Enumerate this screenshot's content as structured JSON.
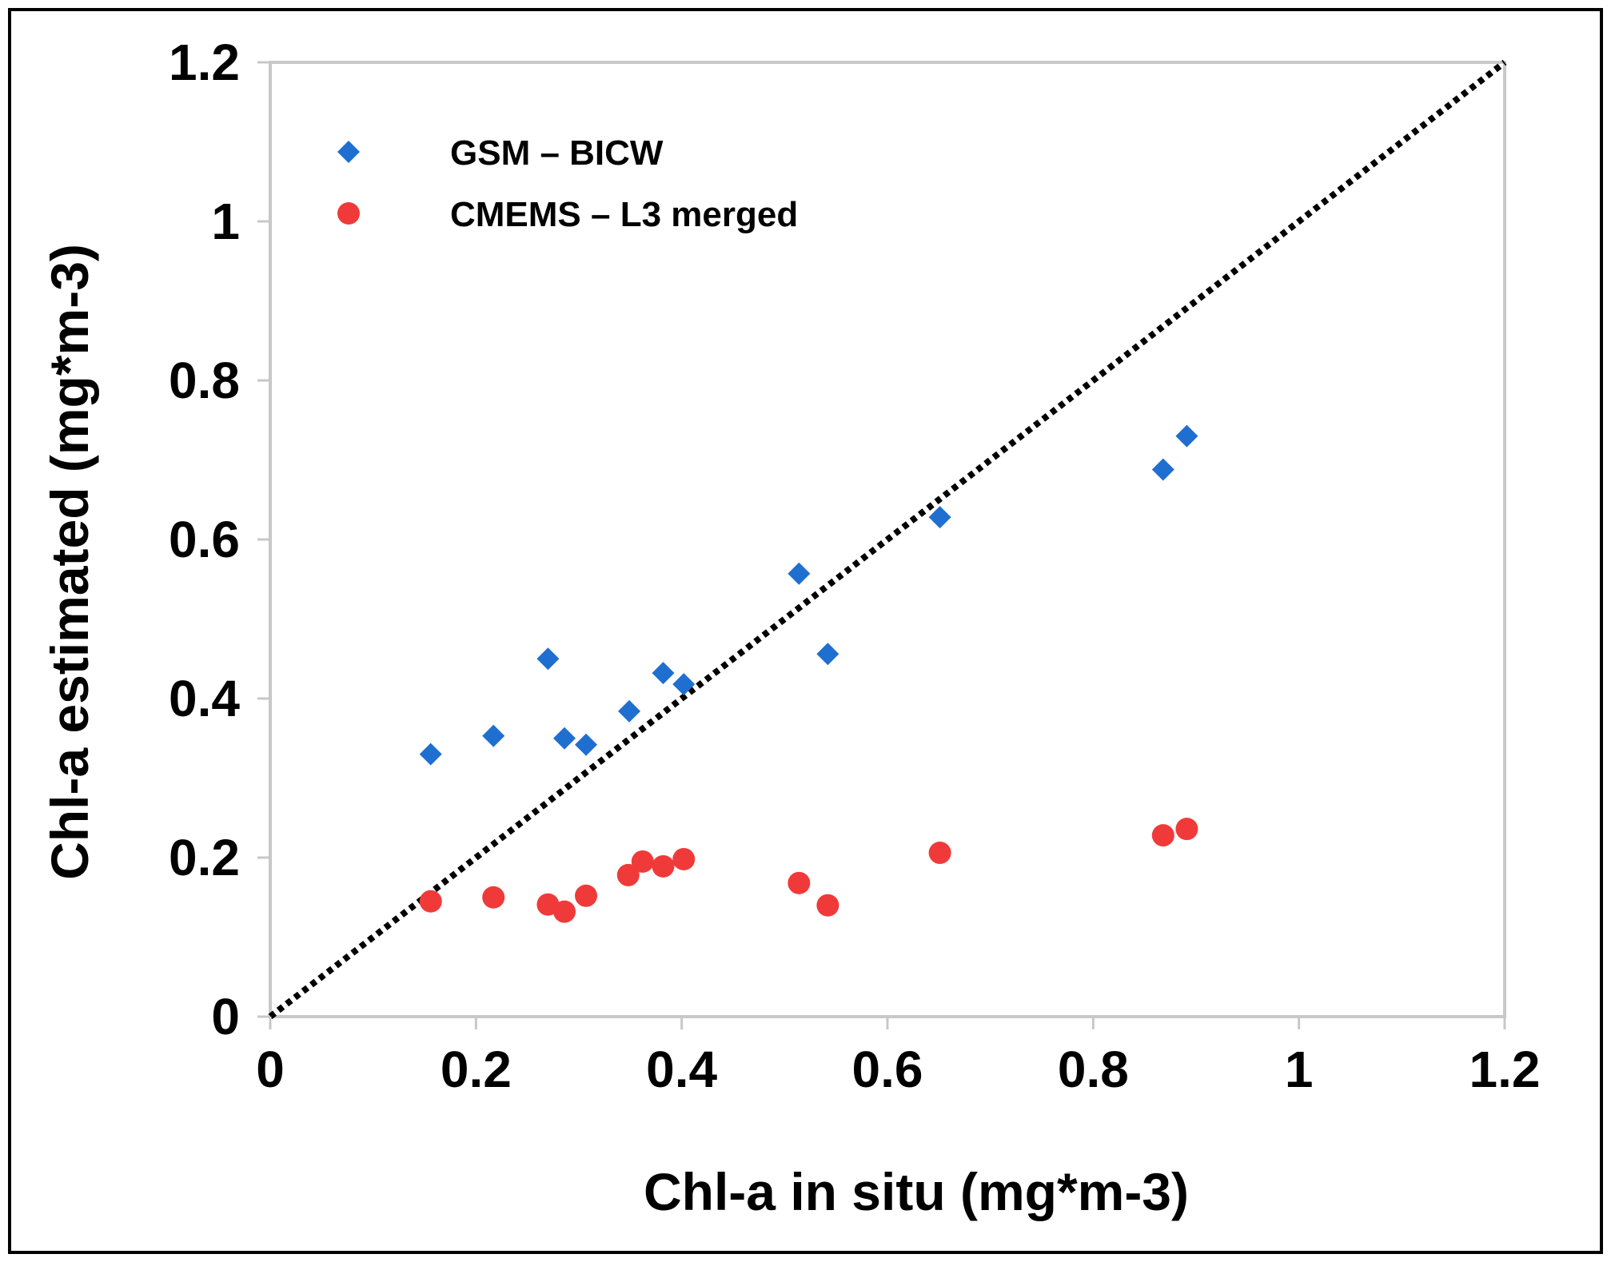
{
  "chart_data": {
    "type": "scatter",
    "xlabel": "Chl-a in situ (mg*m-3)",
    "ylabel": "Chl-a estimated (mg*m-3)",
    "xlim": [
      0,
      1.2
    ],
    "ylim": [
      0,
      1.2
    ],
    "xticks": [
      "0",
      "0.2",
      "0.4",
      "0.6",
      "0.8",
      "1",
      "1.2"
    ],
    "yticks": [
      "0",
      "0.2",
      "0.4",
      "0.6",
      "0.8",
      "1",
      "1.2"
    ],
    "xtick_values": [
      0,
      0.2,
      0.4,
      0.6,
      0.8,
      1.0,
      1.2
    ],
    "ytick_values": [
      0,
      0.2,
      0.4,
      0.6,
      0.8,
      1.0,
      1.2
    ],
    "grid": false,
    "legend_position": "top-left",
    "reference_line": {
      "style": "dotted",
      "from": [
        0,
        0
      ],
      "to": [
        1.2,
        1.2
      ],
      "color": "#000000"
    },
    "series": [
      {
        "name": "GSM – BICW",
        "marker": "diamond",
        "color": "#1f6fd1",
        "points": [
          {
            "x": 0.156,
            "y": 0.33
          },
          {
            "x": 0.217,
            "y": 0.353
          },
          {
            "x": 0.27,
            "y": 0.45
          },
          {
            "x": 0.286,
            "y": 0.35
          },
          {
            "x": 0.307,
            "y": 0.342
          },
          {
            "x": 0.349,
            "y": 0.384
          },
          {
            "x": 0.382,
            "y": 0.432
          },
          {
            "x": 0.402,
            "y": 0.418
          },
          {
            "x": 0.514,
            "y": 0.557
          },
          {
            "x": 0.542,
            "y": 0.456
          },
          {
            "x": 0.651,
            "y": 0.628
          },
          {
            "x": 0.868,
            "y": 0.688
          },
          {
            "x": 0.891,
            "y": 0.73
          }
        ]
      },
      {
        "name": "CMEMS – L3 merged",
        "marker": "circle",
        "color": "#f03a3a",
        "points": [
          {
            "x": 0.156,
            "y": 0.145
          },
          {
            "x": 0.217,
            "y": 0.15
          },
          {
            "x": 0.27,
            "y": 0.141
          },
          {
            "x": 0.286,
            "y": 0.132
          },
          {
            "x": 0.307,
            "y": 0.152
          },
          {
            "x": 0.348,
            "y": 0.178
          },
          {
            "x": 0.362,
            "y": 0.195
          },
          {
            "x": 0.382,
            "y": 0.189
          },
          {
            "x": 0.402,
            "y": 0.198
          },
          {
            "x": 0.514,
            "y": 0.168
          },
          {
            "x": 0.542,
            "y": 0.14
          },
          {
            "x": 0.651,
            "y": 0.206
          },
          {
            "x": 0.868,
            "y": 0.228
          },
          {
            "x": 0.891,
            "y": 0.236
          }
        ]
      }
    ]
  }
}
